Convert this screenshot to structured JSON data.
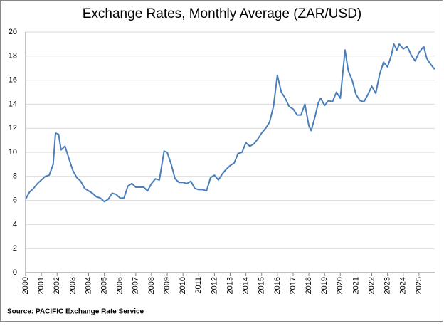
{
  "chart_data": {
    "type": "line",
    "title": "Exchange Rates, Monthly Average (ZAR/USD)",
    "source": "Source:  PACIFIC Exchange Rate Service",
    "color": "#4a7ebb",
    "grid": true,
    "xlim": [
      2000,
      2026
    ],
    "ylim": [
      0,
      20
    ],
    "yticks": [
      0,
      2,
      4,
      6,
      8,
      10,
      12,
      14,
      16,
      18,
      20
    ],
    "xticks": [
      2000,
      2001,
      2002,
      2003,
      2004,
      2005,
      2006,
      2007,
      2008,
      2009,
      2010,
      2011,
      2012,
      2013,
      2014,
      2015,
      2016,
      2017,
      2018,
      2019,
      2020,
      2021,
      2022,
      2023,
      2024,
      2025
    ],
    "x": [
      2000.0,
      2000.25,
      2000.5,
      2000.75,
      2001.0,
      2001.25,
      2001.5,
      2001.75,
      2001.9,
      2002.1,
      2002.25,
      2002.5,
      2002.75,
      2003.0,
      2003.25,
      2003.5,
      2003.75,
      2004.0,
      2004.25,
      2004.5,
      2004.75,
      2005.0,
      2005.25,
      2005.5,
      2005.75,
      2006.0,
      2006.25,
      2006.5,
      2006.75,
      2007.0,
      2007.25,
      2007.5,
      2007.75,
      2008.0,
      2008.25,
      2008.5,
      2008.8,
      2009.0,
      2009.25,
      2009.5,
      2009.75,
      2010.0,
      2010.25,
      2010.5,
      2010.75,
      2011.0,
      2011.25,
      2011.5,
      2011.75,
      2012.0,
      2012.25,
      2012.5,
      2012.75,
      2013.0,
      2013.25,
      2013.5,
      2013.75,
      2014.0,
      2014.25,
      2014.5,
      2014.75,
      2015.0,
      2015.25,
      2015.5,
      2015.75,
      2016.0,
      2016.25,
      2016.5,
      2016.75,
      2017.0,
      2017.25,
      2017.5,
      2017.75,
      2018.0,
      2018.15,
      2018.4,
      2018.6,
      2018.75,
      2019.0,
      2019.25,
      2019.5,
      2019.75,
      2020.0,
      2020.3,
      2020.5,
      2020.75,
      2021.0,
      2021.25,
      2021.5,
      2021.75,
      2022.0,
      2022.25,
      2022.5,
      2022.75,
      2023.0,
      2023.25,
      2023.4,
      2023.6,
      2023.75,
      2024.0,
      2024.25,
      2024.5,
      2024.75,
      2025.0,
      2025.3,
      2025.5,
      2025.75,
      2026.0
    ],
    "values": [
      6.1,
      6.7,
      7.0,
      7.4,
      7.7,
      8.0,
      8.1,
      9.0,
      11.6,
      11.5,
      10.2,
      10.5,
      9.5,
      8.5,
      7.9,
      7.6,
      7.0,
      6.8,
      6.6,
      6.3,
      6.2,
      5.9,
      6.1,
      6.6,
      6.5,
      6.2,
      6.2,
      7.2,
      7.4,
      7.1,
      7.1,
      7.1,
      6.8,
      7.4,
      7.8,
      7.7,
      10.1,
      10.0,
      9.0,
      7.8,
      7.5,
      7.5,
      7.4,
      7.6,
      7.0,
      6.9,
      6.9,
      6.8,
      7.9,
      8.1,
      7.7,
      8.2,
      8.6,
      8.9,
      9.1,
      9.9,
      10.0,
      10.8,
      10.5,
      10.7,
      11.1,
      11.6,
      12.0,
      12.5,
      13.8,
      16.4,
      15.0,
      14.5,
      13.8,
      13.6,
      13.1,
      13.1,
      14.0,
      12.2,
      11.8,
      13.0,
      14.1,
      14.5,
      13.9,
      14.3,
      14.2,
      15.0,
      14.5,
      18.5,
      16.8,
      16.0,
      14.8,
      14.3,
      14.2,
      14.8,
      15.5,
      14.9,
      16.5,
      17.5,
      17.1,
      18.1,
      19.0,
      18.5,
      19.0,
      18.6,
      18.8,
      18.1,
      17.6,
      18.3,
      18.8,
      17.8,
      17.3,
      16.9
    ]
  }
}
